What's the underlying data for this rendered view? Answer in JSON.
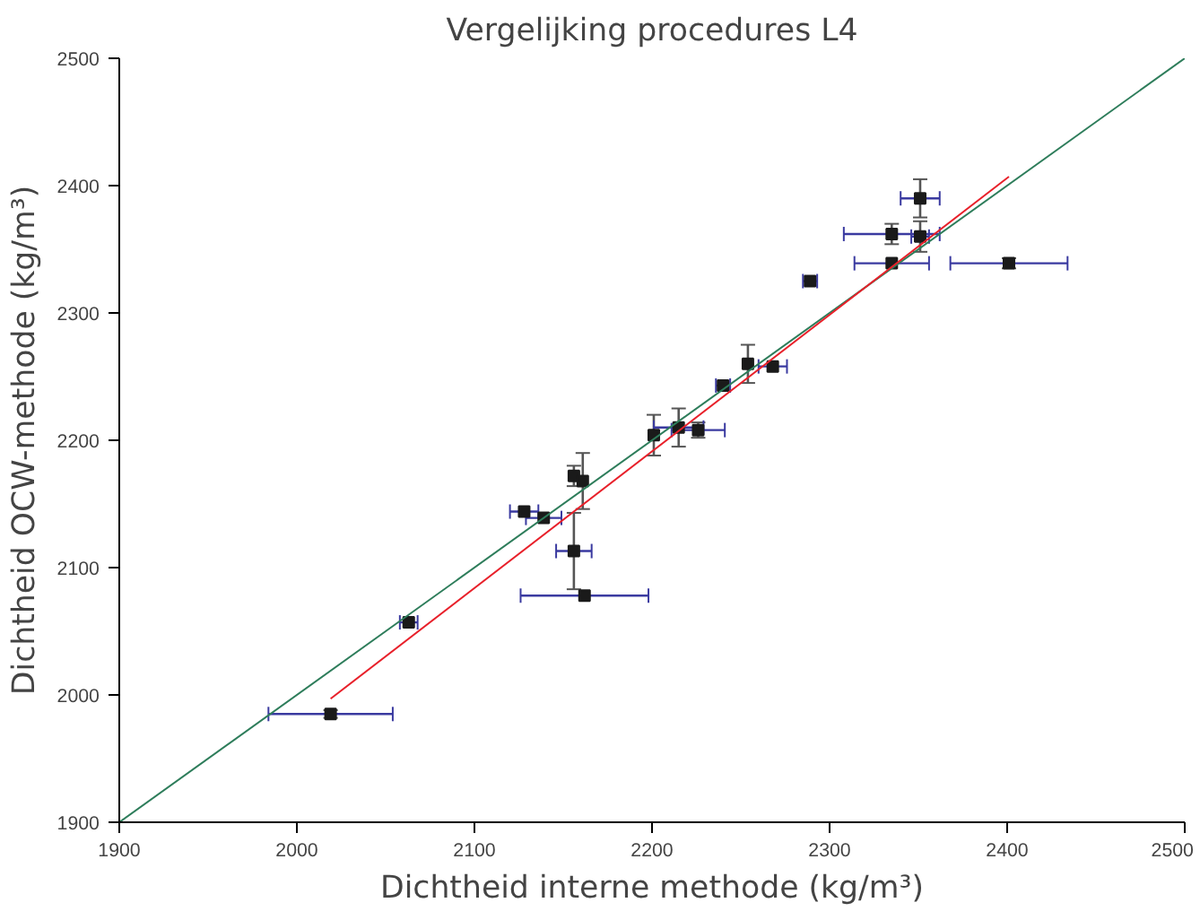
{
  "chart_data": {
    "type": "scatter",
    "title": "Vergelijking procedures L4",
    "xlabel": "Dichtheid interne methode (kg/m³)",
    "ylabel": "Dichtheid OCW-methode (kg/m³)",
    "xlim": [
      1900,
      2500
    ],
    "ylim": [
      1900,
      2500
    ],
    "xticks": [
      1900,
      2000,
      2100,
      2200,
      2300,
      2400,
      2500
    ],
    "yticks": [
      1900,
      2000,
      2100,
      2200,
      2300,
      2400,
      2500
    ],
    "grid": false,
    "series": [
      {
        "marker": "square",
        "color": "#1a1a1a",
        "x": [
          2019,
          2063,
          2128,
          2139,
          2156,
          2161,
          2156,
          2162,
          2201,
          2215,
          2226,
          2240,
          2254,
          2268,
          2289,
          2335,
          2351,
          2351,
          2335,
          2401
        ],
        "values": [
          1985,
          2057,
          2144,
          2139,
          2172,
          2168,
          2113,
          2078,
          2204,
          2210,
          2208,
          2243,
          2260,
          2258,
          2325,
          2362,
          2390,
          2360,
          2339,
          2339
        ],
        "errors": [
          3,
          null,
          null,
          null,
          8,
          22,
          30,
          null,
          16,
          15,
          6,
          null,
          15,
          null,
          null,
          8,
          15,
          12,
          null,
          4
        ],
        "xerrors": [
          35,
          5,
          8,
          10,
          null,
          null,
          10,
          36,
          null,
          14,
          15,
          4,
          null,
          8,
          4,
          27,
          11,
          5,
          21,
          33
        ]
      },
      {
        "type": "line",
        "color": "#2e7d5b",
        "x": [
          1900,
          2500
        ],
        "values": [
          1900,
          2500
        ],
        "line_style": "solid"
      },
      {
        "type": "line",
        "color": "#e8202a",
        "x": [
          2019,
          2401
        ],
        "values": [
          1997,
          2407
        ],
        "line_style": "solid"
      }
    ]
  }
}
